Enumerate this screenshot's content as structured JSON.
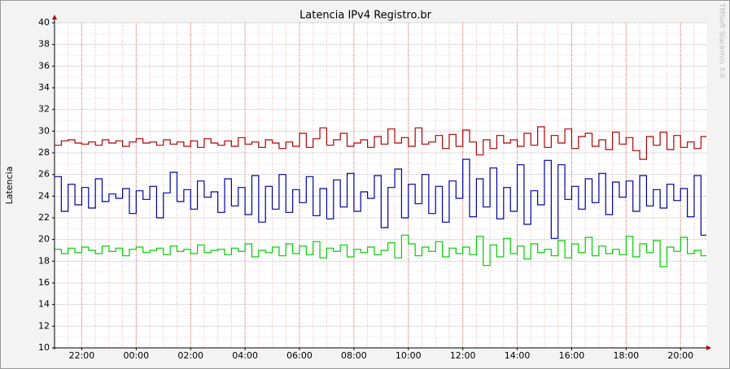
{
  "chart_data": {
    "type": "line",
    "title": "Latencia IPv4 Registro.br",
    "y_label": "Latencia",
    "watermark": "TMSoft Slackmin 3.0",
    "step": true,
    "grid": true,
    "xlim": [
      21,
      44.95
    ],
    "xticks": [
      {
        "value": 22,
        "label": "22:00"
      },
      {
        "value": 24,
        "label": "00:00"
      },
      {
        "value": 26,
        "label": "02:00"
      },
      {
        "value": 28,
        "label": "04:00"
      },
      {
        "value": 30,
        "label": "06:00"
      },
      {
        "value": 32,
        "label": "08:00"
      },
      {
        "value": 34,
        "label": "10:00"
      },
      {
        "value": 36,
        "label": "12:00"
      },
      {
        "value": 38,
        "label": "14:00"
      },
      {
        "value": 40,
        "label": "16:00"
      },
      {
        "value": 42,
        "label": "18:00"
      },
      {
        "value": 44,
        "label": "20:00"
      }
    ],
    "ylim": [
      10,
      40
    ],
    "yticks": [
      10,
      12,
      14,
      16,
      18,
      20,
      22,
      24,
      26,
      28,
      30,
      32,
      34,
      36,
      38,
      40
    ],
    "x": [
      21,
      21.25,
      21.5,
      21.75,
      22,
      22.25,
      22.5,
      22.75,
      23,
      23.25,
      23.5,
      23.75,
      24,
      24.25,
      24.5,
      24.75,
      25,
      25.25,
      25.5,
      25.75,
      26,
      26.25,
      26.5,
      26.75,
      27,
      27.25,
      27.5,
      27.75,
      28,
      28.25,
      28.5,
      28.75,
      29,
      29.25,
      29.5,
      29.75,
      30,
      30.25,
      30.5,
      30.75,
      31,
      31.25,
      31.5,
      31.75,
      32,
      32.25,
      32.5,
      32.75,
      33,
      33.25,
      33.5,
      33.75,
      34,
      34.25,
      34.5,
      34.75,
      35,
      35.25,
      35.5,
      35.75,
      36,
      36.25,
      36.5,
      36.75,
      37,
      37.25,
      37.5,
      37.75,
      38,
      38.25,
      38.5,
      38.75,
      39,
      39.25,
      39.5,
      39.75,
      40,
      40.25,
      40.5,
      40.75,
      41,
      41.25,
      41.5,
      41.75,
      42,
      42.25,
      42.5,
      42.75,
      43,
      43.25,
      43.5,
      43.75,
      44,
      44.25,
      44.5,
      44.75
    ],
    "series": [
      {
        "color": "#b00000",
        "values": [
          28.7,
          29.1,
          29.2,
          28.9,
          28.8,
          29.0,
          28.7,
          29.2,
          28.9,
          29.1,
          28.6,
          29.0,
          29.3,
          28.9,
          29.0,
          28.7,
          29.2,
          28.8,
          29.0,
          28.6,
          29.1,
          28.5,
          29.3,
          28.9,
          28.7,
          29.1,
          28.6,
          29.4,
          28.8,
          29.0,
          28.5,
          29.2,
          28.9,
          28.4,
          29.0,
          28.6,
          29.8,
          28.5,
          29.3,
          30.3,
          28.7,
          29.2,
          29.8,
          28.6,
          28.9,
          29.2,
          28.5,
          29.5,
          28.8,
          30.2,
          28.9,
          29.4,
          28.6,
          30.3,
          28.8,
          29.0,
          29.6,
          28.4,
          29.7,
          28.6,
          30.1,
          29.0,
          27.8,
          29.2,
          28.4,
          29.6,
          28.9,
          29.2,
          28.6,
          29.8,
          28.7,
          30.4,
          28.5,
          29.6,
          28.9,
          30.2,
          28.4,
          29.5,
          29.8,
          28.6,
          29.2,
          28.3,
          29.9,
          28.8,
          29.4,
          28.2,
          27.4,
          29.5,
          28.7,
          29.9,
          28.3,
          29.6,
          28.5,
          29.0,
          28.4,
          29.5
        ]
      },
      {
        "color": "#0000a0",
        "values": [
          25.8,
          22.6,
          25.1,
          23.2,
          24.8,
          22.9,
          25.6,
          23.5,
          24.2,
          23.8,
          24.7,
          22.4,
          24.5,
          23.7,
          24.9,
          22.0,
          24.3,
          26.2,
          23.5,
          24.6,
          22.8,
          25.4,
          23.9,
          24.4,
          22.5,
          25.6,
          23.1,
          24.8,
          22.3,
          25.9,
          21.6,
          24.9,
          22.8,
          26.0,
          22.5,
          24.6,
          23.4,
          25.8,
          22.2,
          24.7,
          21.9,
          25.5,
          23.0,
          26.1,
          22.6,
          24.4,
          23.8,
          25.9,
          21.1,
          24.8,
          26.5,
          22.0,
          25.1,
          23.3,
          26.0,
          22.4,
          24.9,
          21.6,
          25.4,
          23.8,
          27.4,
          22.1,
          25.6,
          23.0,
          26.6,
          21.9,
          24.8,
          22.6,
          26.9,
          21.4,
          24.5,
          23.2,
          27.3,
          20.1,
          26.9,
          23.7,
          24.9,
          22.8,
          25.6,
          23.4,
          26.1,
          22.3,
          25.3,
          23.9,
          25.4,
          22.6,
          25.9,
          23.1,
          24.6,
          22.9,
          25.1,
          23.6,
          24.7,
          22.1,
          25.9,
          20.4
        ]
      },
      {
        "color": "#00cc00",
        "values": [
          19.1,
          18.7,
          19.2,
          18.8,
          19.3,
          19.0,
          18.7,
          19.4,
          18.9,
          19.2,
          18.5,
          19.1,
          19.3,
          18.8,
          19.0,
          19.2,
          18.6,
          19.4,
          18.9,
          19.1,
          18.7,
          19.5,
          18.8,
          19.0,
          19.1,
          18.6,
          19.2,
          18.9,
          19.6,
          18.4,
          19.0,
          18.8,
          19.3,
          18.5,
          19.6,
          18.7,
          19.4,
          18.6,
          19.8,
          18.3,
          19.2,
          18.9,
          19.5,
          18.4,
          19.1,
          18.8,
          19.3,
          18.6,
          19.0,
          19.7,
          18.3,
          20.4,
          19.6,
          18.5,
          19.3,
          18.9,
          19.8,
          18.4,
          19.2,
          18.7,
          19.3,
          18.6,
          20.3,
          17.6,
          19.5,
          18.4,
          20.1,
          18.7,
          19.4,
          18.2,
          19.6,
          18.8,
          19.1,
          18.5,
          19.9,
          18.3,
          19.6,
          18.8,
          20.2,
          18.5,
          19.4,
          18.7,
          19.1,
          18.6,
          20.3,
          18.4,
          19.6,
          18.8,
          19.9,
          17.5,
          19.3,
          18.9,
          20.2,
          18.7,
          19.0,
          18.5
        ]
      }
    ]
  }
}
